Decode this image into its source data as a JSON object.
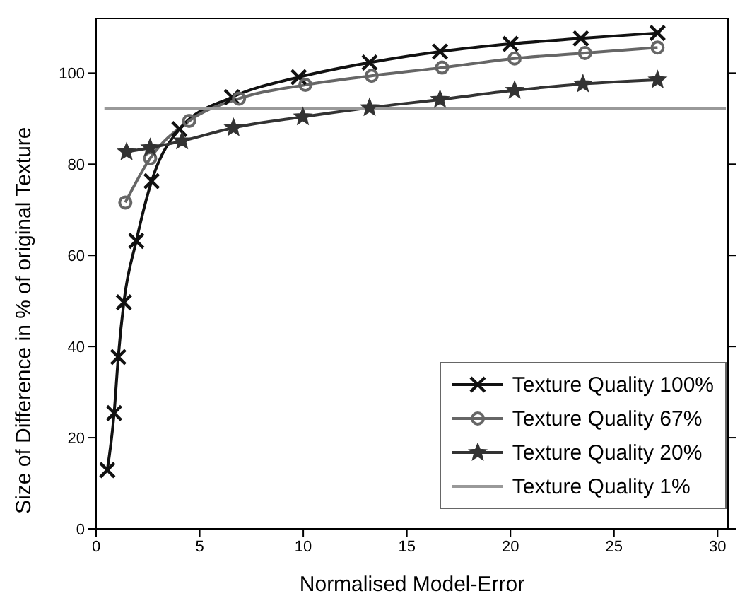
{
  "chart_data": {
    "type": "line",
    "xlabel": "Normalised Model-Error",
    "ylabel": "Size of Difference in % of original Texture",
    "xlim": [
      0,
      30.5
    ],
    "xticks": [
      0,
      5,
      10,
      15,
      20,
      25,
      30
    ],
    "ylim": [
      0,
      112
    ],
    "yticks": [
      0,
      20,
      40,
      60,
      80,
      100
    ],
    "grid": false,
    "legend": "bottom right",
    "series": [
      {
        "name": "Texture Quality 100%",
        "color": "#111111",
        "marker": "cross",
        "x": [
          0.54,
          0.87,
          1.07,
          1.34,
          1.94,
          2.68,
          4.02,
          6.56,
          9.78,
          13.2,
          16.6,
          20.0,
          23.4,
          27.1
        ],
        "values": [
          12.9,
          25.4,
          37.7,
          49.7,
          63.2,
          76.3,
          87.7,
          94.7,
          99.1,
          102.3,
          104.7,
          106.4,
          107.6,
          108.8
        ]
      },
      {
        "name": "Texture Quality 67%",
        "color": "#666666",
        "marker": "circle",
        "x": [
          1.41,
          2.61,
          4.49,
          6.9,
          10.1,
          13.3,
          16.7,
          20.2,
          23.6,
          27.1
        ],
        "values": [
          71.6,
          81.3,
          89.5,
          94.4,
          97.4,
          99.4,
          101.2,
          103.2,
          104.4,
          105.6
        ]
      },
      {
        "name": "Texture Quality 20%",
        "color": "#333333",
        "marker": "star",
        "x": [
          1.47,
          2.61,
          4.15,
          6.63,
          9.98,
          13.2,
          16.6,
          20.2,
          23.5,
          27.1
        ],
        "values": [
          82.7,
          83.6,
          85.1,
          88.0,
          90.4,
          92.4,
          94.2,
          96.2,
          97.6,
          98.5
        ]
      },
      {
        "name": "Texture Quality 1%",
        "color": "#999999",
        "marker": "none",
        "x": [
          0.4,
          30.4
        ],
        "values": [
          92.3,
          92.3
        ]
      }
    ]
  }
}
